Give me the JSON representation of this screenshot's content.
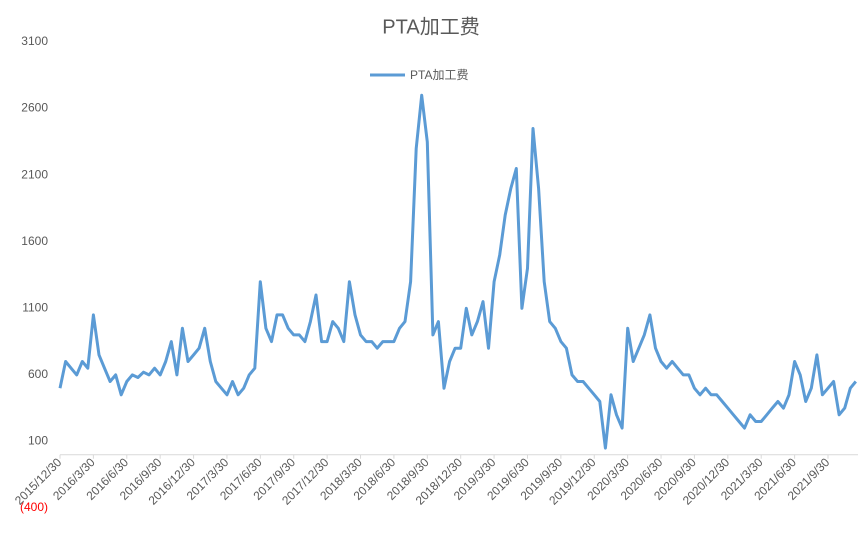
{
  "chart_data": {
    "type": "line",
    "title": "PTA加工费",
    "categories": [
      "2015/12/30",
      null,
      null,
      null,
      null,
      null,
      "2016/3/30",
      null,
      null,
      null,
      null,
      null,
      "2016/6/30",
      null,
      null,
      null,
      null,
      null,
      "2016/9/30",
      null,
      null,
      null,
      null,
      null,
      "2016/12/30",
      null,
      null,
      null,
      null,
      null,
      "2017/3/30",
      null,
      null,
      null,
      null,
      null,
      "2017/6/30",
      null,
      null,
      null,
      null,
      null,
      "2017/9/30",
      null,
      null,
      null,
      null,
      null,
      "2017/12/30",
      null,
      null,
      null,
      null,
      null,
      "2018/3/30",
      null,
      null,
      null,
      null,
      null,
      "2018/6/30",
      null,
      null,
      null,
      null,
      null,
      "2018/9/30",
      null,
      null,
      null,
      null,
      null,
      "2018/12/30",
      null,
      null,
      null,
      null,
      null,
      "2019/3/30",
      null,
      null,
      null,
      null,
      null,
      "2019/6/30",
      null,
      null,
      null,
      null,
      null,
      "2019/9/30",
      null,
      null,
      null,
      null,
      null,
      "2019/12/30",
      null,
      null,
      null,
      null,
      null,
      "2020/3/30",
      null,
      null,
      null,
      null,
      null,
      "2020/6/30",
      null,
      null,
      null,
      null,
      null,
      "2020/9/30",
      null,
      null,
      null,
      null,
      null,
      "2020/12/30",
      null,
      null,
      null,
      null,
      null,
      "2021/3/30",
      null,
      null,
      null,
      null,
      null,
      "2021/6/30",
      null,
      null,
      null,
      null,
      null,
      "2021/9/30",
      null,
      null,
      null,
      null,
      null
    ],
    "series": [
      {
        "name": "PTA加工费",
        "color": "#5b9bd5",
        "values": [
          500,
          700,
          650,
          600,
          700,
          650,
          1050,
          750,
          650,
          550,
          600,
          450,
          550,
          600,
          580,
          620,
          600,
          650,
          600,
          700,
          850,
          600,
          950,
          700,
          750,
          800,
          950,
          700,
          550,
          500,
          450,
          550,
          450,
          500,
          600,
          650,
          1300,
          950,
          850,
          1050,
          1050,
          950,
          900,
          900,
          850,
          1000,
          1200,
          850,
          850,
          1000,
          950,
          850,
          1300,
          1050,
          900,
          850,
          850,
          800,
          850,
          850,
          850,
          950,
          1000,
          1300,
          2300,
          2700,
          2350,
          900,
          1000,
          500,
          700,
          800,
          800,
          1100,
          900,
          1000,
          1150,
          800,
          1300,
          1500,
          1800,
          2000,
          2150,
          1100,
          1400,
          2450,
          2000,
          1300,
          1000,
          950,
          850,
          800,
          600,
          550,
          550,
          500,
          450,
          400,
          50,
          450,
          300,
          200,
          950,
          700,
          800,
          900,
          1050,
          800,
          700,
          650,
          700,
          650,
          600,
          600,
          500,
          450,
          500,
          450,
          450,
          400,
          350,
          300,
          250,
          200,
          300,
          250,
          250,
          300,
          350,
          400,
          350,
          450,
          700,
          600,
          400,
          500,
          750,
          450,
          500,
          550,
          300,
          350,
          500,
          550
        ]
      }
    ],
    "ylim": [
      -400,
      3100
    ],
    "yticks": [
      {
        "value": -400,
        "label": "(400)"
      },
      100,
      600,
      1100,
      1600,
      2100,
      2600,
      3100
    ],
    "grid": false,
    "legend": "top"
  }
}
